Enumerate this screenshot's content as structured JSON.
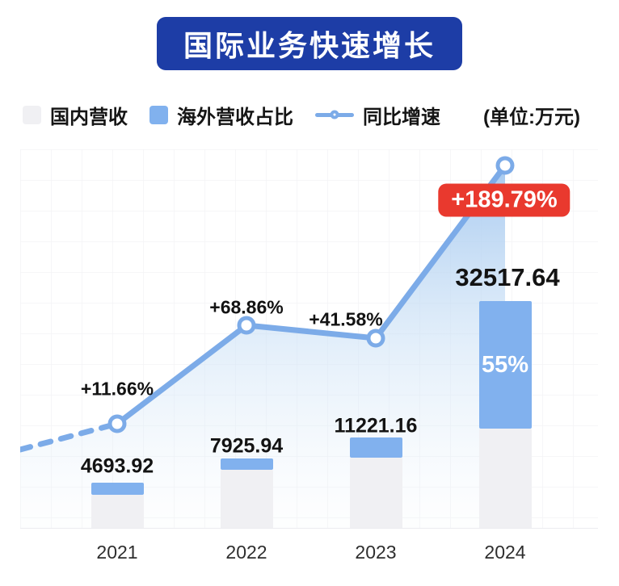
{
  "header": {
    "title": "国际业务快速增长"
  },
  "legend": {
    "items": [
      {
        "label": "国内营收",
        "swatch": "gray-square"
      },
      {
        "label": "海外营收占比",
        "swatch": "blue-square"
      },
      {
        "label": "同比增速",
        "swatch": "line-circle-marker"
      }
    ],
    "unit": "(单位:万元)"
  },
  "chart_data": {
    "type": "combo",
    "categories": [
      "2021",
      "2022",
      "2023",
      "2024"
    ],
    "series": [
      {
        "name": "国内营收",
        "type": "bar",
        "role": "domestic-revenue-base"
      },
      {
        "name": "海外营收占比",
        "type": "bar",
        "role": "overseas-share-segment",
        "share_labels": [
          "",
          "",
          "",
          "55%"
        ]
      },
      {
        "name": "同比增速",
        "type": "line",
        "values_pct": [
          11.66,
          68.86,
          41.58,
          189.79
        ],
        "point_labels": [
          "+11.66%",
          "+68.86%",
          "+41.58%",
          "+189.79%"
        ],
        "style": "solid-with-leading-dash"
      }
    ],
    "revenue_labels": [
      "4693.92",
      "7925.94",
      "11221.16",
      "32517.64"
    ],
    "revenue_values": [
      4693.92,
      7925.94,
      11221.16,
      32517.64
    ],
    "unit": "(单位:万元)",
    "title": "国际业务快速增长",
    "highlight": {
      "year": "2024",
      "growth": "+189.79%",
      "overseas_share": "55%"
    },
    "grid": "on",
    "legend_position": "top"
  },
  "colors": {
    "banner": "#1d3da6",
    "bar_domestic": "#f0f0f3",
    "bar_overseas": "#81b1ee",
    "line": "#7cabe8",
    "badge_red": "#e9392e",
    "text": "#131313"
  }
}
